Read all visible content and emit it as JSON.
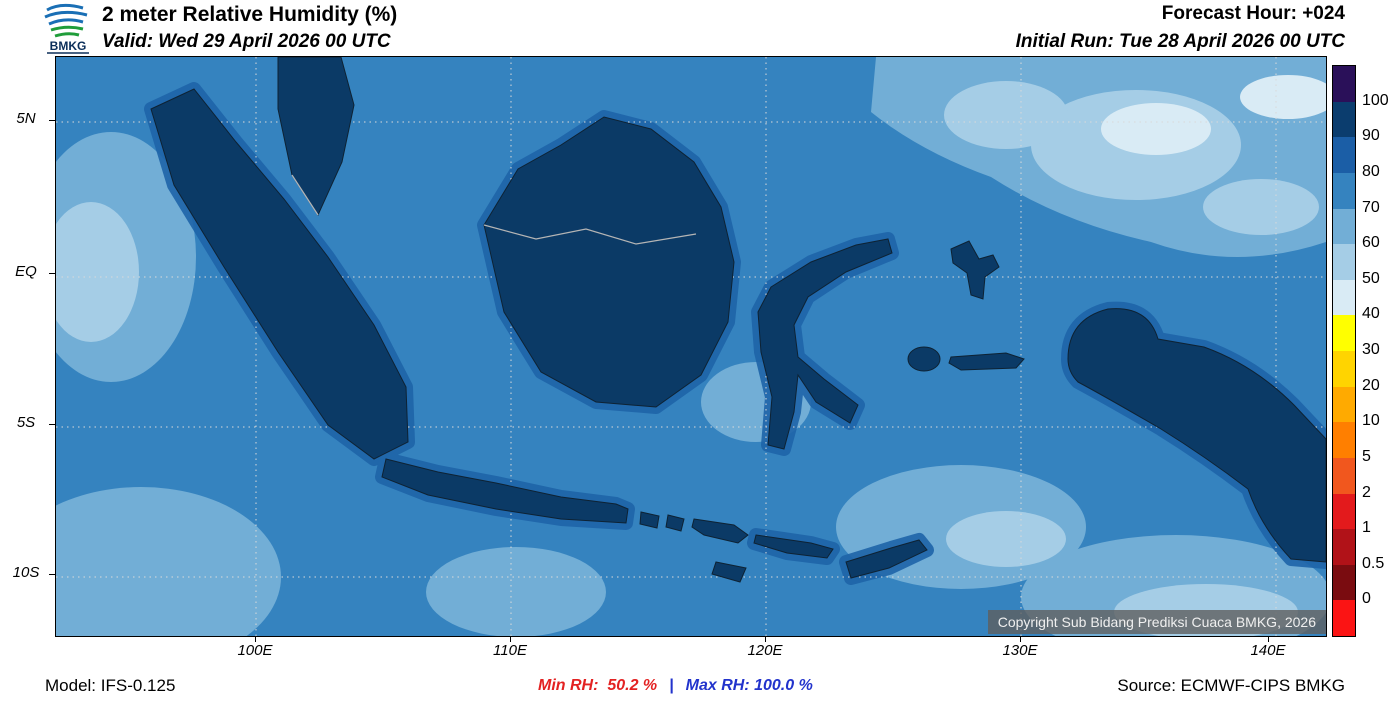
{
  "colors": {
    "sea": "#3583bf",
    "land": "#0b3a66",
    "coastal_halo": "#1e64a8",
    "min_rh_color": "#e32222",
    "max_rh_color": "#2233cc"
  },
  "header": {
    "logo_text": "BMKG",
    "title": "2 meter Relative Humidity (%)",
    "valid": "Valid: Wed 29 April 2026 00 UTC",
    "forecast_hour": "Forecast Hour: +024",
    "initial_run": "Initial Run: Tue 28 April 2026 00 UTC"
  },
  "axes": {
    "y_ticks": [
      "5N",
      "EQ",
      "5S",
      "10S"
    ],
    "x_ticks": [
      "100E",
      "110E",
      "120E",
      "130E",
      "140E"
    ]
  },
  "legend": {
    "values": [
      "100",
      "90",
      "80",
      "70",
      "60",
      "50",
      "40",
      "30",
      "20",
      "10",
      "5",
      "2",
      "1",
      "0.5",
      "0"
    ],
    "colors": [
      "#2a1059",
      "#0b3d6e",
      "#1b5ea6",
      "#3583bf",
      "#72aed6",
      "#a5cde6",
      "#d9ebf5",
      "#ffff00",
      "#ffd400",
      "#ffaa00",
      "#ff7f00",
      "#f1571e",
      "#e31a1c",
      "#b11218",
      "#7a0c10",
      "#fb1414"
    ]
  },
  "map": {
    "copyright": "Copyright Sub Bidang Prediksi Cuaca BMKG, 2026"
  },
  "footer": {
    "model": "Model: IFS-0.125",
    "min_rh": "Min RH:  50.2 %",
    "divider": "|",
    "max_rh": "Max RH: 100.0 %",
    "source": "Source: ECMWF-CIPS BMKG"
  },
  "chart_data": {
    "type": "heatmap",
    "title": "2 meter Relative Humidity (%)",
    "region": "Indonesia",
    "x_ticks": [
      "100E",
      "110E",
      "120E",
      "130E",
      "140E"
    ],
    "y_ticks": [
      "5N",
      "EQ",
      "5S",
      "10S"
    ],
    "scale_values": [
      100,
      90,
      80,
      70,
      60,
      50,
      40,
      30,
      20,
      10,
      5,
      2,
      1,
      0.5,
      0
    ],
    "scale_unit": "%",
    "min_rh": 50.2,
    "max_rh": 100.0,
    "forecast_hour": 24,
    "legend_position": "right"
  }
}
